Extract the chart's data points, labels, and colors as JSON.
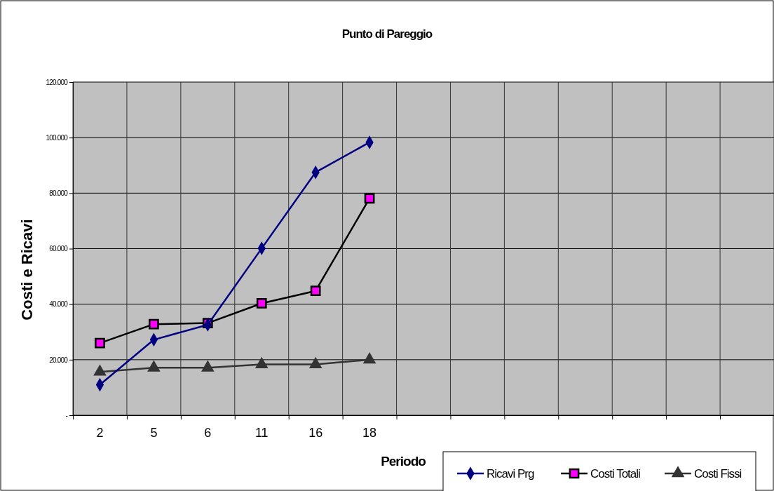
{
  "chart_data": {
    "type": "line",
    "title": "Punto di Pareggio",
    "xlabel": "Periodo",
    "ylabel": "Costi e Ricavi",
    "categories": [
      "2",
      "5",
      "6",
      "11",
      "16",
      "18",
      null,
      null,
      null,
      null,
      null,
      null,
      null
    ],
    "series": [
      {
        "name": "Ricavi Prg",
        "color": "#000080",
        "marker": "diamond",
        "values": [
          11000,
          27200,
          32600,
          60100,
          87500,
          98300,
          null,
          null,
          null,
          null,
          null,
          null,
          null
        ]
      },
      {
        "name": "Costi Totali",
        "color": "#000000",
        "marker": "square",
        "values": [
          26000,
          32800,
          33200,
          40300,
          44800,
          78100,
          null,
          null,
          null,
          null,
          null,
          null,
          null
        ]
      },
      {
        "name": "Costi Fissi",
        "color": "#333333",
        "marker": "triangle",
        "values": [
          15600,
          17100,
          17100,
          18300,
          18300,
          20000,
          null,
          null,
          null,
          null,
          null,
          null,
          null
        ]
      }
    ],
    "ylim": [
      0,
      120000
    ],
    "yticks": [
      {
        "value": 0,
        "label": "-"
      },
      {
        "value": 20000,
        "label": "20.000"
      },
      {
        "value": 40000,
        "label": "40.000"
      },
      {
        "value": 60000,
        "label": "60.000"
      },
      {
        "value": 80000,
        "label": "80.000"
      },
      {
        "value": 100000,
        "label": "100.000"
      },
      {
        "value": 120000,
        "label": "120.000"
      }
    ],
    "grid": true,
    "legend": "bottom right"
  }
}
